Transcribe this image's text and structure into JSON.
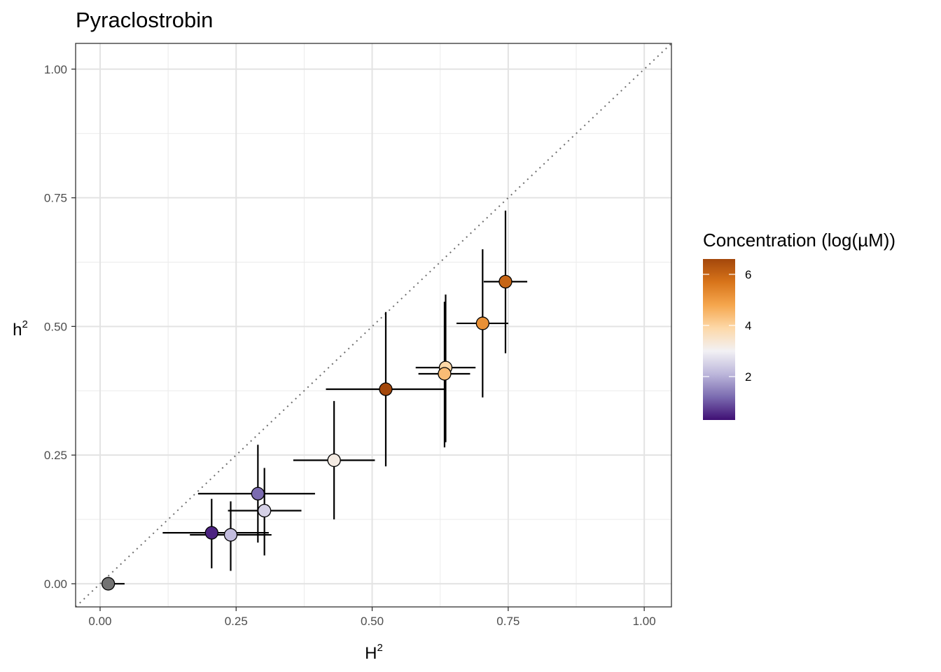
{
  "chart_data": {
    "type": "scatter",
    "title": "Pyraclostrobin",
    "xlabel": "H",
    "xlabel_sup": "2",
    "ylabel": "h",
    "ylabel_sup": "2",
    "xlim": [
      -0.045,
      1.05
    ],
    "ylim": [
      -0.045,
      1.05
    ],
    "xticks": [
      0.0,
      0.25,
      0.5,
      0.75,
      1.0
    ],
    "xtick_labels": [
      "0.00",
      "0.25",
      "0.50",
      "0.75",
      "1.00"
    ],
    "yticks": [
      0.0,
      0.25,
      0.5,
      0.75,
      1.0
    ],
    "ytick_labels": [
      "0.00",
      "0.25",
      "0.50",
      "0.75",
      "1.00"
    ],
    "grid": true,
    "reference_line": "y = x (dotted)",
    "legend": {
      "title": "Concentration (log(µM))",
      "placement": "right",
      "range": [
        0.3,
        6.6
      ],
      "ticks": [
        2,
        4,
        6
      ],
      "tick_labels": [
        "2",
        "4",
        "6"
      ],
      "colors": [
        "#3f0f74",
        "#7b6bb0",
        "#bdb7db",
        "#f2f1f4",
        "#fdd8a8",
        "#f5a64d",
        "#d8741a",
        "#a3470b"
      ]
    },
    "points": [
      {
        "x": 0.015,
        "y": 0.0,
        "xmin": 0.015,
        "xmax": 0.045,
        "ymin": 0.0,
        "ymax": 0.0,
        "conc": null,
        "color": "#737373"
      },
      {
        "x": 0.205,
        "y": 0.099,
        "xmin": 0.115,
        "xmax": 0.31,
        "ymin": 0.03,
        "ymax": 0.165,
        "conc": 0.5
      },
      {
        "x": 0.24,
        "y": 0.095,
        "xmin": 0.165,
        "xmax": 0.315,
        "ymin": 0.025,
        "ymax": 0.16,
        "conc": 2.2
      },
      {
        "x": 0.29,
        "y": 0.175,
        "xmin": 0.18,
        "xmax": 0.395,
        "ymin": 0.08,
        "ymax": 0.27,
        "conc": 1.2
      },
      {
        "x": 0.302,
        "y": 0.142,
        "xmin": 0.235,
        "xmax": 0.37,
        "ymin": 0.055,
        "ymax": 0.225,
        "conc": 2.5
      },
      {
        "x": 0.43,
        "y": 0.24,
        "xmin": 0.355,
        "xmax": 0.505,
        "ymin": 0.125,
        "ymax": 0.355,
        "conc": 3.2
      },
      {
        "x": 0.525,
        "y": 0.378,
        "xmin": 0.415,
        "xmax": 0.635,
        "ymin": 0.228,
        "ymax": 0.528,
        "conc": 6.6
      },
      {
        "x": 0.635,
        "y": 0.42,
        "xmin": 0.58,
        "xmax": 0.69,
        "ymin": 0.275,
        "ymax": 0.562,
        "conc": 3.9
      },
      {
        "x": 0.633,
        "y": 0.408,
        "xmin": 0.585,
        "xmax": 0.68,
        "ymin": 0.265,
        "ymax": 0.548,
        "conc": 4.4
      },
      {
        "x": 0.703,
        "y": 0.506,
        "xmin": 0.655,
        "xmax": 0.75,
        "ymin": 0.362,
        "ymax": 0.65,
        "conc": 5.2
      },
      {
        "x": 0.745,
        "y": 0.587,
        "xmin": 0.705,
        "xmax": 0.785,
        "ymin": 0.448,
        "ymax": 0.725,
        "conc": 6.0
      }
    ]
  }
}
